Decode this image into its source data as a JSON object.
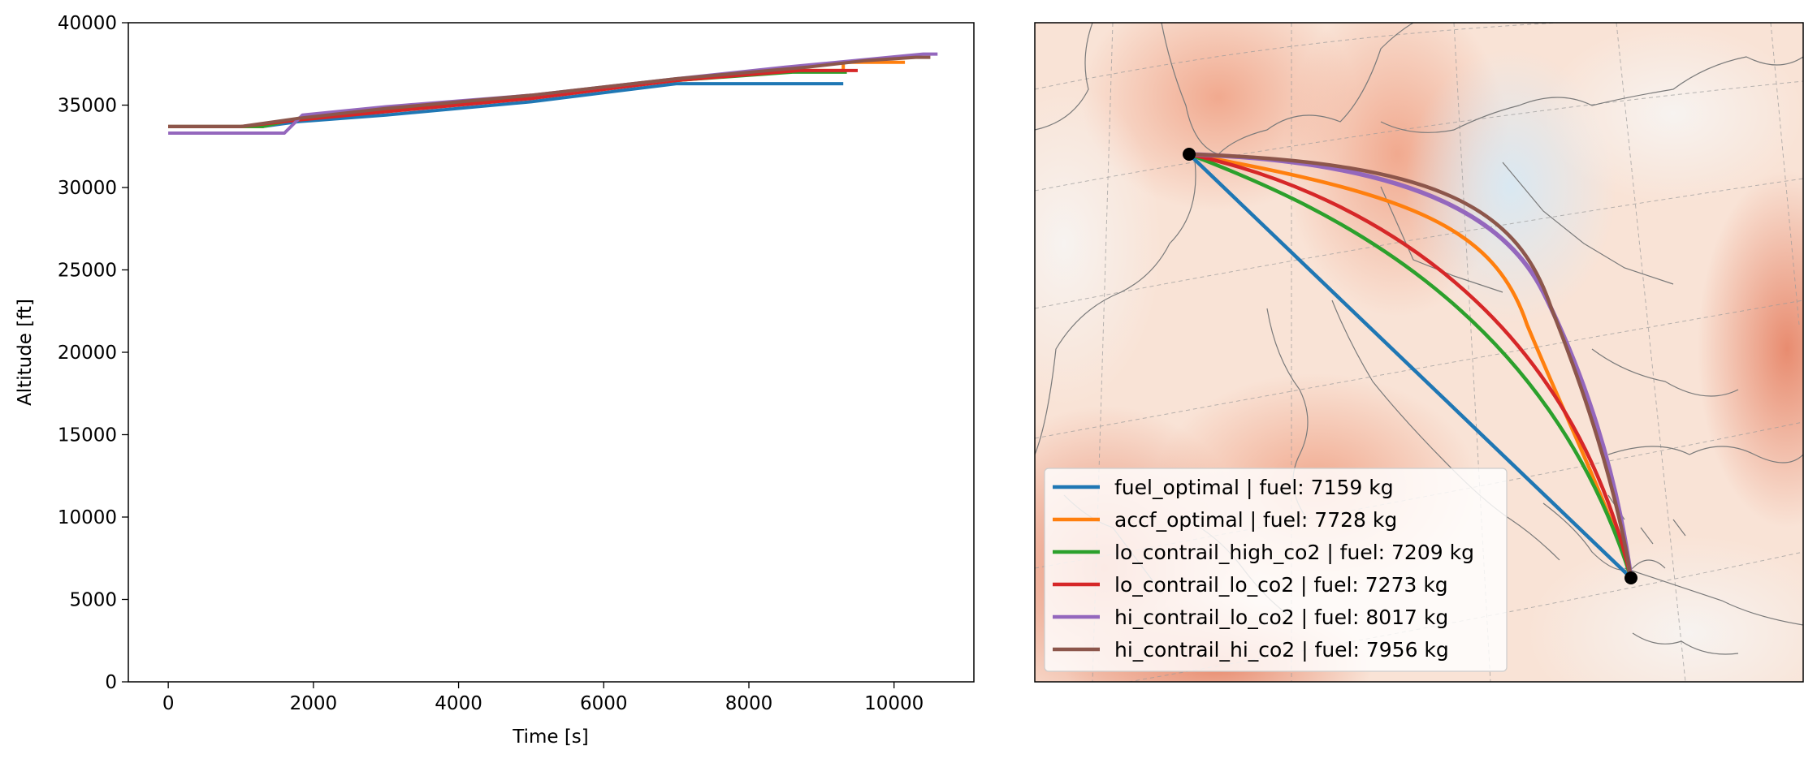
{
  "chart_data": [
    {
      "type": "line",
      "xlabel": "Time [s]",
      "ylabel": "Altitude [ft]",
      "xlim": [
        -550,
        11100
      ],
      "ylim": [
        0,
        40000
      ],
      "xticks": [
        0,
        2000,
        4000,
        6000,
        8000,
        10000
      ],
      "xtick_labels": [
        "0",
        "2000",
        "4000",
        "6000",
        "8000",
        "10000"
      ],
      "yticks": [
        0,
        5000,
        10000,
        15000,
        20000,
        25000,
        30000,
        35000,
        40000
      ],
      "ytick_labels": [
        "0",
        "5000",
        "10000",
        "15000",
        "20000",
        "25000",
        "30000",
        "35000",
        "40000"
      ],
      "grid": false,
      "series": [
        {
          "name": "fuel_optimal",
          "color": "#1f77b4",
          "points": [
            [
              0,
              33700
            ],
            [
              1300,
              33700
            ],
            [
              1800,
              34000
            ],
            [
              3000,
              34400
            ],
            [
              5000,
              35200
            ],
            [
              7000,
              36300
            ],
            [
              9300,
              36300
            ]
          ]
        },
        {
          "name": "accf_optimal",
          "color": "#ff7f0e",
          "points": [
            [
              0,
              33700
            ],
            [
              1300,
              33700
            ],
            [
              1800,
              34200
            ],
            [
              3000,
              34700
            ],
            [
              5000,
              35500
            ],
            [
              7000,
              36500
            ],
            [
              8700,
              37100
            ],
            [
              9300,
              37100
            ],
            [
              9300,
              37600
            ],
            [
              10150,
              37600
            ]
          ]
        },
        {
          "name": "lo_contrail_high_co2",
          "color": "#2ca02c",
          "points": [
            [
              0,
              33700
            ],
            [
              1300,
              33700
            ],
            [
              1800,
              34200
            ],
            [
              3000,
              34700
            ],
            [
              5000,
              35500
            ],
            [
              7000,
              36500
            ],
            [
              8600,
              37000
            ],
            [
              9350,
              37000
            ]
          ]
        },
        {
          "name": "lo_contrail_lo_co2",
          "color": "#d62728",
          "points": [
            [
              0,
              33700
            ],
            [
              1000,
              33700
            ],
            [
              1800,
              34100
            ],
            [
              3000,
              34600
            ],
            [
              5000,
              35400
            ],
            [
              7000,
              36500
            ],
            [
              8700,
              37100
            ],
            [
              9500,
              37100
            ]
          ]
        },
        {
          "name": "hi_contrail_lo_co2",
          "color": "#9467bd",
          "points": [
            [
              0,
              33300
            ],
            [
              1600,
              33300
            ],
            [
              1850,
              34400
            ],
            [
              3000,
              34900
            ],
            [
              5000,
              35600
            ],
            [
              7000,
              36600
            ],
            [
              8500,
              37300
            ],
            [
              10400,
              38100
            ],
            [
              10600,
              38100
            ]
          ]
        },
        {
          "name": "hi_contrail_hi_co2",
          "color": "#8c564b",
          "points": [
            [
              0,
              33700
            ],
            [
              1000,
              33700
            ],
            [
              1800,
              34200
            ],
            [
              3000,
              34800
            ],
            [
              5000,
              35600
            ],
            [
              7000,
              36600
            ],
            [
              8800,
              37300
            ],
            [
              9600,
              37700
            ],
            [
              10300,
              37900
            ],
            [
              10500,
              37900
            ]
          ]
        }
      ]
    },
    {
      "type": "map",
      "background": "ACCF field (diverging red-blue) over Europe with coastlines and graticule",
      "legend_position": "lower-left",
      "legend": [
        {
          "label": "fuel_optimal | fuel: 7159 kg",
          "color": "#1f77b4"
        },
        {
          "label": "accf_optimal | fuel: 7728 kg",
          "color": "#ff7f0e"
        },
        {
          "label": "lo_contrail_high_co2 | fuel: 7209 kg",
          "color": "#2ca02c"
        },
        {
          "label": "lo_contrail_lo_co2 | fuel: 7273 kg",
          "color": "#d62728"
        },
        {
          "label": "hi_contrail_lo_co2 | fuel: 8017 kg",
          "color": "#9467bd"
        },
        {
          "label": "hi_contrail_hi_co2 | fuel: 7956 kg",
          "color": "#8c564b"
        }
      ],
      "endpoints": [
        "origin",
        "destination"
      ]
    }
  ]
}
